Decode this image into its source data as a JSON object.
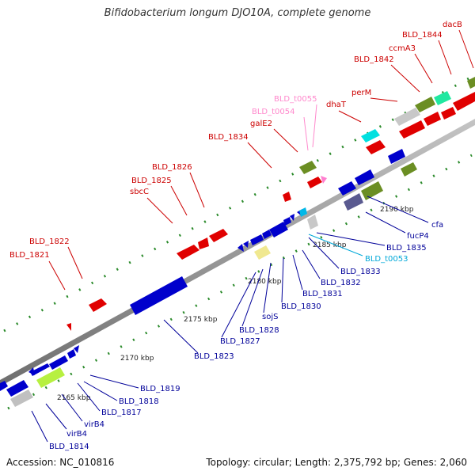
{
  "header": {
    "title": "Bifidobacterium longum DJO10A, complete genome"
  },
  "footer": {
    "accession": "Accession: NC_010816",
    "summary": "Topology: circular; Length: 2,375,792 bp; Genes: 2,060"
  },
  "colors": {
    "top_label": "#cc0000",
    "bottom_label": "#000099",
    "light_label": "#ff88cc",
    "cyan_label": "#00a8d8",
    "backbone": "#909090",
    "tick": "#2a8a2a"
  },
  "ticks": [
    {
      "label": "2165 kbp"
    },
    {
      "label": "2170 kbp"
    },
    {
      "label": "2175 kbp"
    },
    {
      "label": "2180 kbp"
    },
    {
      "label": "2185 kbp"
    },
    {
      "label": "2190 kbp"
    }
  ],
  "top_labels": [
    {
      "text": "BLD_1821",
      "tone": "red"
    },
    {
      "text": "BLD_1822",
      "tone": "red"
    },
    {
      "text": "sbcC",
      "tone": "red"
    },
    {
      "text": "BLD_1825",
      "tone": "red"
    },
    {
      "text": "BLD_1826",
      "tone": "red"
    },
    {
      "text": "BLD_1834",
      "tone": "red"
    },
    {
      "text": "galE2",
      "tone": "red"
    },
    {
      "text": "BLD_t0054",
      "tone": "pink"
    },
    {
      "text": "BLD_t0055",
      "tone": "pink"
    },
    {
      "text": "dhaT",
      "tone": "red"
    },
    {
      "text": "perM",
      "tone": "red"
    },
    {
      "text": "BLD_1842",
      "tone": "red"
    },
    {
      "text": "ccmA3",
      "tone": "red"
    },
    {
      "text": "BLD_1844",
      "tone": "red"
    },
    {
      "text": "dacB",
      "tone": "red"
    }
  ],
  "bottom_labels": [
    {
      "text": "BLD_1814",
      "tone": "blue"
    },
    {
      "text": "virB4",
      "tone": "blue"
    },
    {
      "text": "virB4",
      "tone": "blue"
    },
    {
      "text": "BLD_1817",
      "tone": "blue"
    },
    {
      "text": "BLD_1818",
      "tone": "blue"
    },
    {
      "text": "BLD_1819",
      "tone": "blue"
    },
    {
      "text": "BLD_1823",
      "tone": "blue"
    },
    {
      "text": "BLD_1827",
      "tone": "blue"
    },
    {
      "text": "BLD_1828",
      "tone": "blue"
    },
    {
      "text": "sojS",
      "tone": "blue"
    },
    {
      "text": "BLD_1830",
      "tone": "blue"
    },
    {
      "text": "BLD_1831",
      "tone": "blue"
    },
    {
      "text": "BLD_1832",
      "tone": "blue"
    },
    {
      "text": "BLD_1833",
      "tone": "blue"
    },
    {
      "text": "BLD_t0053",
      "tone": "cyan"
    },
    {
      "text": "BLD_1835",
      "tone": "blue"
    },
    {
      "text": "fucP4",
      "tone": "blue"
    },
    {
      "text": "cfa",
      "tone": "blue"
    }
  ]
}
